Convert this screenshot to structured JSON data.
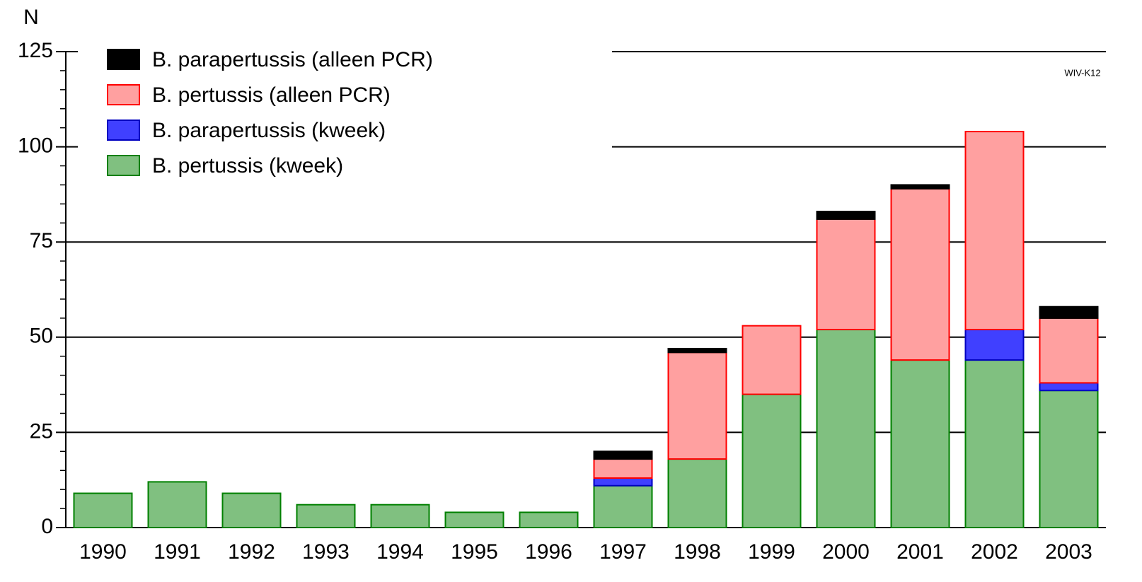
{
  "chart_data": {
    "type": "stacked_bar",
    "y_label": "N",
    "annotation": "WIV-K12",
    "categories": [
      "1990",
      "1991",
      "1992",
      "1993",
      "1994",
      "1995",
      "1996",
      "1997",
      "1998",
      "1999",
      "2000",
      "2001",
      "2002",
      "2003"
    ],
    "series": [
      {
        "name": "B. pertussis (kweek)",
        "color": "#80c080",
        "stroke": "#008000",
        "values": [
          9,
          12,
          9,
          6,
          6,
          4,
          4,
          11,
          18,
          35,
          52,
          44,
          44,
          36
        ]
      },
      {
        "name": "B. parapertussis (kweek)",
        "color": "#4040ff",
        "stroke": "#0000c0",
        "values": [
          0,
          0,
          0,
          0,
          0,
          0,
          0,
          2,
          0,
          0,
          0,
          0,
          8,
          2
        ]
      },
      {
        "name": "B. pertussis (alleen PCR)",
        "color": "#ffa0a0",
        "stroke": "#ff0000",
        "values": [
          0,
          0,
          0,
          0,
          0,
          0,
          0,
          5,
          28,
          18,
          29,
          45,
          52,
          17
        ]
      },
      {
        "name": "B. parapertussis (alleen PCR)",
        "color": "#000000",
        "stroke": "#000000",
        "values": [
          0,
          0,
          0,
          0,
          0,
          0,
          0,
          2,
          1,
          0,
          2,
          1,
          0,
          3
        ]
      }
    ],
    "ylim": [
      0,
      125
    ],
    "yticks": [
      0,
      25,
      50,
      75,
      100,
      125
    ],
    "grid": true,
    "legend": "top-left"
  }
}
